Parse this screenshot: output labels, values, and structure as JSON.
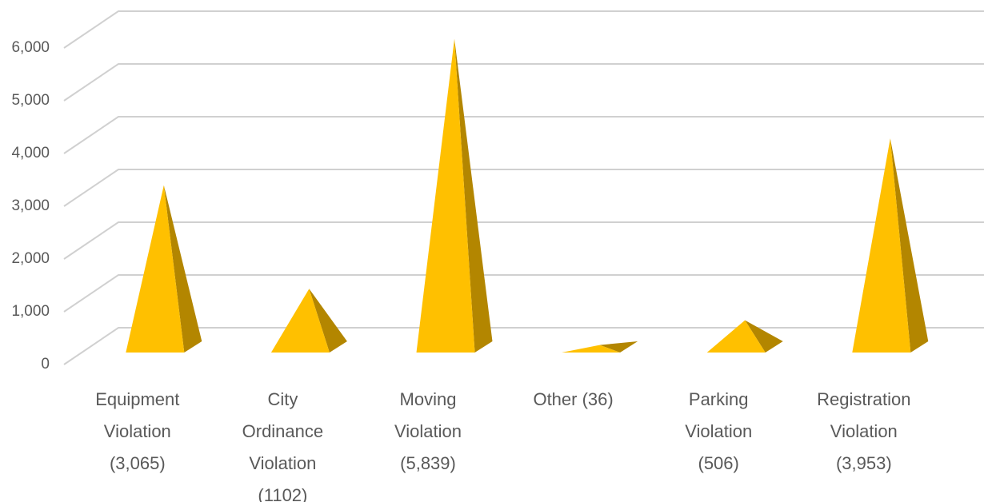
{
  "chart_data": {
    "type": "pyramid3d",
    "categories": [
      "Equipment Violation (3,065)",
      "City Ordinance Violation (1102)",
      "Moving Violation (5,839)",
      "Other (36)",
      "Parking Violation (506)",
      "Registration Violation (3,953)"
    ],
    "values": [
      3065,
      1102,
      5839,
      36,
      506,
      3953
    ],
    "color": "#ffc000",
    "ylim": [
      0,
      6000
    ],
    "yticks": [
      0,
      {
        "value": 1000,
        "label": "1,000"
      },
      {
        "value": 2000,
        "label": "2,000"
      },
      {
        "value": 3000,
        "label": "3,000"
      },
      {
        "value": 4000,
        "label": "4,000"
      },
      {
        "value": 5000,
        "label": "5,000"
      },
      {
        "value": 6000,
        "label": "6,000"
      }
    ],
    "grid": true
  }
}
